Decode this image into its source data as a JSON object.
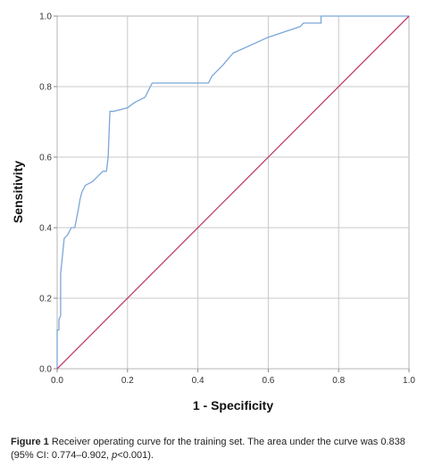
{
  "chart_data": {
    "type": "line",
    "xlabel": "1 - Specificity",
    "ylabel": "Sensitivity",
    "xlim": [
      0,
      1
    ],
    "ylim": [
      0,
      1
    ],
    "xticks": [
      "0.0",
      "0.2",
      "0.4",
      "0.6",
      "0.8",
      "1.0"
    ],
    "yticks": [
      "0.0",
      "0.2",
      "0.4",
      "0.6",
      "0.8",
      "1.0"
    ],
    "grid": true,
    "legend": "none",
    "series": [
      {
        "color": "#7ba6d9",
        "x": [
          0,
          0.0,
          0.005,
          0.005,
          0.01,
          0.01,
          0.02,
          0.03,
          0.04,
          0.05,
          0.06,
          0.065,
          0.07,
          0.08,
          0.1,
          0.13,
          0.14,
          0.145,
          0.15,
          0.16,
          0.2,
          0.22,
          0.25,
          0.27,
          0.3,
          0.35,
          0.43,
          0.44,
          0.47,
          0.5,
          0.6,
          0.69,
          0.7,
          0.75,
          0.75,
          1.0
        ],
        "y": [
          0,
          0.11,
          0.11,
          0.14,
          0.15,
          0.27,
          0.37,
          0.38,
          0.4,
          0.4,
          0.45,
          0.48,
          0.5,
          0.52,
          0.53,
          0.56,
          0.56,
          0.6,
          0.73,
          0.73,
          0.74,
          0.755,
          0.77,
          0.81,
          0.81,
          0.81,
          0.81,
          0.83,
          0.86,
          0.895,
          0.94,
          0.97,
          0.98,
          0.98,
          1.0,
          1.0
        ]
      },
      {
        "color": "#c04070",
        "x": [
          0,
          1
        ],
        "y": [
          0,
          1
        ]
      }
    ]
  },
  "caption": {
    "label": "Figure 1",
    "text_before_p": " Receiver operating curve for the training set. The area under the curve was 0.838 (95% CI: 0.774–0.902, ",
    "p_symbol": "p",
    "text_after_p": "<0.001)."
  }
}
